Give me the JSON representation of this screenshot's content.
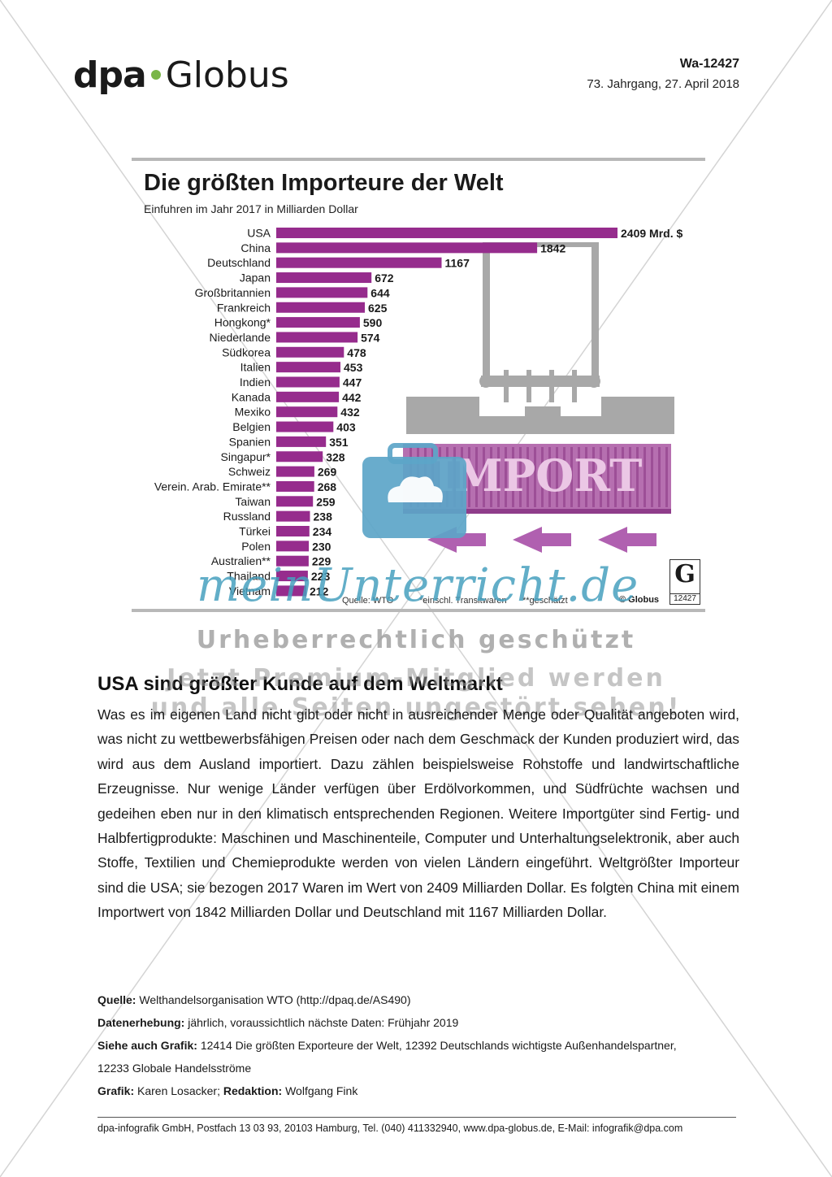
{
  "header": {
    "logo_left": "dpa",
    "logo_right": "Globus",
    "doc_id": "Wa-12427",
    "doc_date": "73. Jahrgang, 27. April 2018"
  },
  "chart_data": {
    "type": "bar",
    "orientation": "horizontal",
    "title": "Die größten Importeure der Welt",
    "subtitle": "Einfuhren im Jahr 2017 in Milliarden Dollar",
    "categories": [
      "USA",
      "China",
      "Deutschland",
      "Japan",
      "Großbritannien",
      "Frankreich",
      "Hongkong*",
      "Niederlande",
      "Südkorea",
      "Italien",
      "Indien",
      "Kanada",
      "Mexiko",
      "Belgien",
      "Spanien",
      "Singapur*",
      "Schweiz",
      "Verein. Arab. Emirate**",
      "Taiwan",
      "Russland",
      "Türkei",
      "Polen",
      "Australien**",
      "Thailand",
      "Vietnam"
    ],
    "values": [
      2409,
      1842,
      1167,
      672,
      644,
      625,
      590,
      574,
      478,
      453,
      447,
      442,
      432,
      403,
      351,
      328,
      269,
      268,
      259,
      238,
      234,
      230,
      229,
      223,
      212
    ],
    "value_labels": [
      "2409 Mrd. $",
      "1842",
      "1167",
      "672",
      "644",
      "625",
      "590",
      "574",
      "478",
      "453",
      "447",
      "442",
      "432",
      "403",
      "351",
      "328",
      "269",
      "268",
      "259",
      "238",
      "234",
      "230",
      "229",
      "223",
      "212"
    ],
    "bar_color": "#962c8d",
    "illustration_text": "IMPORT",
    "footnotes": [
      "Quelle: WTO",
      "*einschl. Transitwaren",
      "**geschätzt"
    ],
    "copyright": "© Globus",
    "graphic_number": "12427"
  },
  "watermark": {
    "logo": "meinUnterricht.de",
    "line1": "Urheberrechtlich geschützt",
    "line2": "Jetzt Premium-Mitglied werden",
    "line3": "und alle Seiten ungestört sehen!"
  },
  "article": {
    "title": "USA sind größter Kunde auf dem Weltmarkt",
    "body": "Was es im eigenen Land nicht gibt oder nicht in ausreichender Menge oder Qualität angeboten wird, was nicht zu wettbewerbsfähigen Preisen oder nach dem Geschmack der Kunden produziert wird, das wird aus dem Ausland importiert. Dazu zählen beispielsweise Rohstoffe und landwirtschaftliche Erzeugnisse. Nur wenige Länder verfügen über Erdölvorkommen, und Südfrüchte wachsen und gedeihen eben nur in den klimatisch entsprechenden Regionen. Weitere Importgüter sind Fertig- und Halbfertigprodukte: Maschinen und Maschinenteile, Computer und Unterhaltungselektronik, aber auch Stoffe, Textilien und Chemieprodukte werden von vielen Ländern eingeführt. Weltgrößter Importeur sind die USA; sie bezogen 2017 Waren im Wert von 2409 Milliarden Dollar. Es folgten China mit einem Importwert von 1842 Milliarden Dollar und Deutschland mit 1167 Milliarden Dollar."
  },
  "meta": {
    "source_label": "Quelle:",
    "source_value": "Welthandelsorganisation WTO (http://dpaq.de/AS490)",
    "collection_label": "Datenerhebung:",
    "collection_value": "jährlich, voraussichtlich nächste Daten: Frühjahr 2019",
    "see_label": "Siehe auch Grafik:",
    "see_value": "12414 Die größten Exporteure der Welt, 12392 Deutschlands wichtigste Außenhandelspartner,",
    "see_value2": "12233 Globale Handelsströme",
    "graphic_label": "Grafik:",
    "graphic_value": "Karen Losacker;",
    "editor_label": "Redaktion:",
    "editor_value": "Wolfgang Fink"
  },
  "footer": {
    "text": "dpa-infografik GmbH, Postfach 13 03 93, 20103 Hamburg, Tel. (040) 411332940, www.dpa-globus.de, E-Mail: infografik@dpa.com"
  }
}
